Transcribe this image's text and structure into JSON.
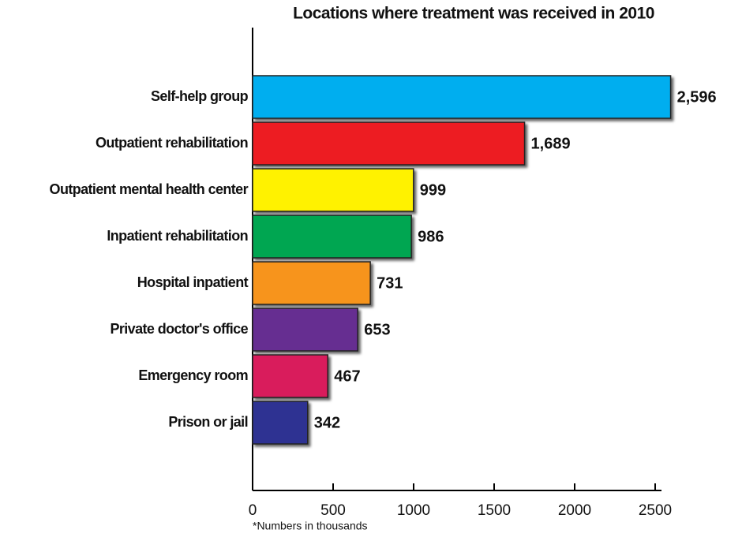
{
  "chart_data": {
    "type": "bar",
    "orientation": "horizontal",
    "title": "Locations where treatment was received in 2010",
    "note": "*Numbers in thousands",
    "categories": [
      "Self-help group",
      "Outpatient rehabilitation",
      "Outpatient mental health center",
      "Inpatient rehabilitation",
      "Hospital inpatient",
      "Private doctor's office",
      "Emergency room",
      "Prison or jail"
    ],
    "values": [
      2596,
      1689,
      999,
      986,
      731,
      653,
      467,
      342
    ],
    "value_labels": [
      "2,596",
      "1,689",
      "999",
      "986",
      "731",
      "653",
      "467",
      "342"
    ],
    "colors": [
      "#00aeef",
      "#ed1c24",
      "#fff200",
      "#00a651",
      "#f7941d",
      "#662d91",
      "#d91b5c",
      "#2e3192"
    ],
    "xlim": [
      0,
      2500
    ],
    "xticks": [
      0,
      500,
      1000,
      1500,
      2000,
      2500
    ]
  }
}
